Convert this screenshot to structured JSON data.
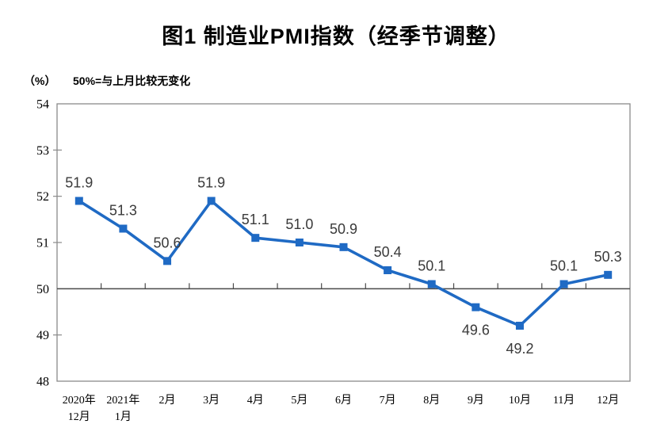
{
  "chart_data": {
    "type": "line",
    "title": "图1 制造业PMI指数（经季节调整）",
    "unit_label": "（%）",
    "note": "50%=与上月比较无变化",
    "categories": [
      [
        "2020年",
        "12月"
      ],
      [
        "2021年",
        "1月"
      ],
      [
        "2月"
      ],
      [
        "3月"
      ],
      [
        "4月"
      ],
      [
        "5月"
      ],
      [
        "6月"
      ],
      [
        "7月"
      ],
      [
        "8月"
      ],
      [
        "9月"
      ],
      [
        "10月"
      ],
      [
        "11月"
      ],
      [
        "12月"
      ]
    ],
    "series": [
      {
        "name": "制造业PMI指数",
        "values": [
          51.9,
          51.3,
          50.6,
          51.9,
          51.1,
          51.0,
          50.9,
          50.4,
          50.1,
          49.6,
          49.2,
          50.1,
          50.3
        ]
      }
    ],
    "data_labels": [
      "51.9",
      "51.3",
      "50.6",
      "51.9",
      "51.1",
      "51.0",
      "50.9",
      "50.4",
      "50.1",
      "49.6",
      "49.2",
      "50.1",
      "50.3"
    ],
    "label_positions": [
      "above",
      "above",
      "above",
      "above",
      "above",
      "above",
      "above",
      "above",
      "above",
      "below",
      "below",
      "above",
      "above"
    ],
    "ylim": [
      48,
      54
    ],
    "yticks": [
      54,
      53,
      52,
      51,
      50,
      49,
      48
    ],
    "baseline_value": 50,
    "grid": false,
    "legend_position": "none",
    "marker": "square",
    "colors": {
      "line": "#1f6ac4",
      "marker": "#1f6ac4",
      "axis_box": "#8a8a8a",
      "baseline": "#4a4a4a",
      "data_label_text": "#3a3a3a",
      "axis_text": "#000000",
      "title_text": "#000000",
      "background": "#ffffff"
    }
  }
}
